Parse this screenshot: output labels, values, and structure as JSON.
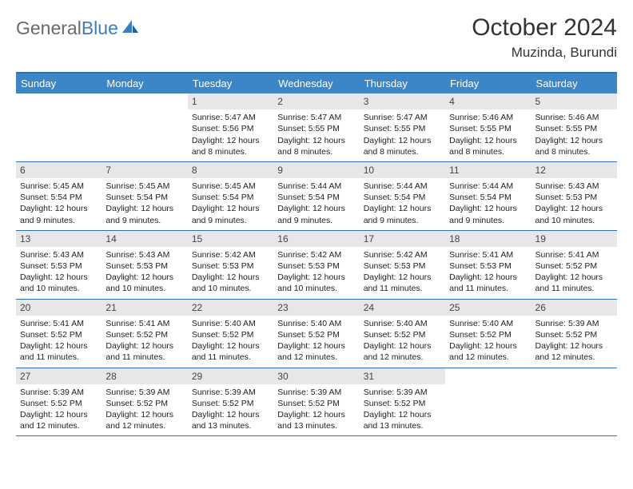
{
  "brand": {
    "part1": "General",
    "part2": "Blue"
  },
  "title": "October 2024",
  "location": "Muzinda, Burundi",
  "colors": {
    "header_bg": "#3c85c6",
    "header_text": "#ffffff",
    "border": "#2f6fb3",
    "daynum_bg": "#e7e7e7",
    "logo_gray": "#6a6a6a",
    "logo_blue": "#3b7cc4"
  },
  "day_headers": [
    "Sunday",
    "Monday",
    "Tuesday",
    "Wednesday",
    "Thursday",
    "Friday",
    "Saturday"
  ],
  "weeks": [
    [
      null,
      null,
      {
        "n": "1",
        "sr": "5:47 AM",
        "ss": "5:56 PM",
        "dl": "12 hours and 8 minutes."
      },
      {
        "n": "2",
        "sr": "5:47 AM",
        "ss": "5:55 PM",
        "dl": "12 hours and 8 minutes."
      },
      {
        "n": "3",
        "sr": "5:47 AM",
        "ss": "5:55 PM",
        "dl": "12 hours and 8 minutes."
      },
      {
        "n": "4",
        "sr": "5:46 AM",
        "ss": "5:55 PM",
        "dl": "12 hours and 8 minutes."
      },
      {
        "n": "5",
        "sr": "5:46 AM",
        "ss": "5:55 PM",
        "dl": "12 hours and 8 minutes."
      }
    ],
    [
      {
        "n": "6",
        "sr": "5:45 AM",
        "ss": "5:54 PM",
        "dl": "12 hours and 9 minutes."
      },
      {
        "n": "7",
        "sr": "5:45 AM",
        "ss": "5:54 PM",
        "dl": "12 hours and 9 minutes."
      },
      {
        "n": "8",
        "sr": "5:45 AM",
        "ss": "5:54 PM",
        "dl": "12 hours and 9 minutes."
      },
      {
        "n": "9",
        "sr": "5:44 AM",
        "ss": "5:54 PM",
        "dl": "12 hours and 9 minutes."
      },
      {
        "n": "10",
        "sr": "5:44 AM",
        "ss": "5:54 PM",
        "dl": "12 hours and 9 minutes."
      },
      {
        "n": "11",
        "sr": "5:44 AM",
        "ss": "5:54 PM",
        "dl": "12 hours and 9 minutes."
      },
      {
        "n": "12",
        "sr": "5:43 AM",
        "ss": "5:53 PM",
        "dl": "12 hours and 10 minutes."
      }
    ],
    [
      {
        "n": "13",
        "sr": "5:43 AM",
        "ss": "5:53 PM",
        "dl": "12 hours and 10 minutes."
      },
      {
        "n": "14",
        "sr": "5:43 AM",
        "ss": "5:53 PM",
        "dl": "12 hours and 10 minutes."
      },
      {
        "n": "15",
        "sr": "5:42 AM",
        "ss": "5:53 PM",
        "dl": "12 hours and 10 minutes."
      },
      {
        "n": "16",
        "sr": "5:42 AM",
        "ss": "5:53 PM",
        "dl": "12 hours and 10 minutes."
      },
      {
        "n": "17",
        "sr": "5:42 AM",
        "ss": "5:53 PM",
        "dl": "12 hours and 11 minutes."
      },
      {
        "n": "18",
        "sr": "5:41 AM",
        "ss": "5:53 PM",
        "dl": "12 hours and 11 minutes."
      },
      {
        "n": "19",
        "sr": "5:41 AM",
        "ss": "5:52 PM",
        "dl": "12 hours and 11 minutes."
      }
    ],
    [
      {
        "n": "20",
        "sr": "5:41 AM",
        "ss": "5:52 PM",
        "dl": "12 hours and 11 minutes."
      },
      {
        "n": "21",
        "sr": "5:41 AM",
        "ss": "5:52 PM",
        "dl": "12 hours and 11 minutes."
      },
      {
        "n": "22",
        "sr": "5:40 AM",
        "ss": "5:52 PM",
        "dl": "12 hours and 11 minutes."
      },
      {
        "n": "23",
        "sr": "5:40 AM",
        "ss": "5:52 PM",
        "dl": "12 hours and 12 minutes."
      },
      {
        "n": "24",
        "sr": "5:40 AM",
        "ss": "5:52 PM",
        "dl": "12 hours and 12 minutes."
      },
      {
        "n": "25",
        "sr": "5:40 AM",
        "ss": "5:52 PM",
        "dl": "12 hours and 12 minutes."
      },
      {
        "n": "26",
        "sr": "5:39 AM",
        "ss": "5:52 PM",
        "dl": "12 hours and 12 minutes."
      }
    ],
    [
      {
        "n": "27",
        "sr": "5:39 AM",
        "ss": "5:52 PM",
        "dl": "12 hours and 12 minutes."
      },
      {
        "n": "28",
        "sr": "5:39 AM",
        "ss": "5:52 PM",
        "dl": "12 hours and 12 minutes."
      },
      {
        "n": "29",
        "sr": "5:39 AM",
        "ss": "5:52 PM",
        "dl": "12 hours and 13 minutes."
      },
      {
        "n": "30",
        "sr": "5:39 AM",
        "ss": "5:52 PM",
        "dl": "12 hours and 13 minutes."
      },
      {
        "n": "31",
        "sr": "5:39 AM",
        "ss": "5:52 PM",
        "dl": "12 hours and 13 minutes."
      },
      null,
      null
    ]
  ],
  "labels": {
    "sunrise": "Sunrise:",
    "sunset": "Sunset:",
    "daylight": "Daylight:"
  }
}
